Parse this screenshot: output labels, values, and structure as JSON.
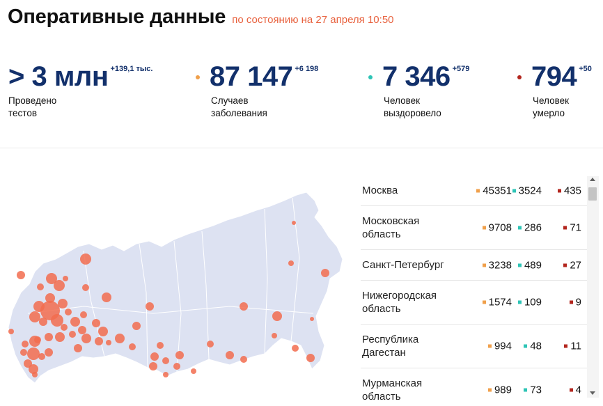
{
  "header": {
    "title": "Оперативные данные",
    "subtitle": "по состоянию на 27 апреля 10:50"
  },
  "stats": [
    {
      "value": "> 3 млн",
      "delta": "+139,1 тыс.",
      "label_line1": "Проведено",
      "label_line2": "тестов",
      "dot_color": ""
    },
    {
      "value": "87 147",
      "delta": "+6 198",
      "label_line1": "Случаев",
      "label_line2": "заболевания",
      "dot_color": "#f0a04b"
    },
    {
      "value": "7 346",
      "delta": "+579",
      "label_line1": "Человек",
      "label_line2": "выздоровело",
      "dot_color": "#2ec4b6"
    },
    {
      "value": "794",
      "delta": "+50",
      "label_line1": "Человек",
      "label_line2": "умерло",
      "dot_color": "#b3261e"
    }
  ],
  "colors": {
    "cases": "#f0a04b",
    "recovered": "#2ec4b6",
    "deaths": "#b3261e",
    "map_fill": "#dde2f2",
    "map_bubble": "#f26c4f",
    "value_text": "#12306b"
  },
  "regions": [
    {
      "name_line1": "Москва",
      "name_line2": "",
      "cases": "45351",
      "recovered": "3524",
      "deaths": "435"
    },
    {
      "name_line1": "Московская",
      "name_line2": "область",
      "cases": "9708",
      "recovered": "286",
      "deaths": "71"
    },
    {
      "name_line1": "Санкт-Петербург",
      "name_line2": "",
      "cases": "3238",
      "recovered": "489",
      "deaths": "27"
    },
    {
      "name_line1": "Нижегородская",
      "name_line2": "область",
      "cases": "1574",
      "recovered": "109",
      "deaths": "9"
    },
    {
      "name_line1": "Республика",
      "name_line2": "Дагестан",
      "cases": "994",
      "recovered": "48",
      "deaths": "11"
    },
    {
      "name_line1": "Мурманская",
      "name_line2": "область",
      "cases": "989",
      "recovered": "73",
      "deaths": "4"
    }
  ],
  "icons": {
    "scroll_up": "triangle-up-icon",
    "scroll_down": "triangle-down-icon"
  }
}
